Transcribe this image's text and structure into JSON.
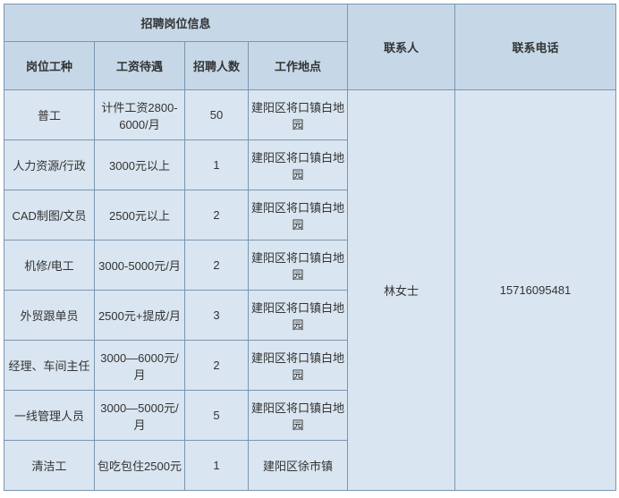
{
  "table": {
    "header_main": "招聘岗位信息",
    "header_contact": "联系人",
    "header_phone": "联系电话",
    "subheaders": {
      "position": "岗位工种",
      "salary": "工资待遇",
      "count": "招聘人数",
      "location": "工作地点"
    },
    "contact_name": "林女士",
    "contact_phone": "15716095481",
    "rows": [
      {
        "position": "普工",
        "salary": "计件工资2800-6000/月",
        "count": "50",
        "location": "建阳区将口镇白地园"
      },
      {
        "position": "人力资源/行政",
        "salary": "3000元以上",
        "count": "1",
        "location": "建阳区将口镇白地园"
      },
      {
        "position": "CAD制图/文员",
        "salary": "2500元以上",
        "count": "2",
        "location": "建阳区将口镇白地园"
      },
      {
        "position": "机修/电工",
        "salary": "3000-5000元/月",
        "count": "2",
        "location": "建阳区将口镇白地园"
      },
      {
        "position": "外贸跟单员",
        "salary": "2500元+提成/月",
        "count": "3",
        "location": "建阳区将口镇白地园"
      },
      {
        "position": "经理、车间主任",
        "salary": "3000—6000元/月",
        "count": "2",
        "location": "建阳区将口镇白地园"
      },
      {
        "position": "一线管理人员",
        "salary": "3000—5000元/月",
        "count": "5",
        "location": "建阳区将口镇白地园"
      },
      {
        "position": "清洁工",
        "salary": "包吃包住2500元",
        "count": "1",
        "location": "建阳区徐市镇"
      }
    ],
    "colors": {
      "header_bg": "#c6d8e8",
      "cell_bg": "#d9e5f0",
      "border": "#7a96b0",
      "text": "#333333"
    }
  }
}
